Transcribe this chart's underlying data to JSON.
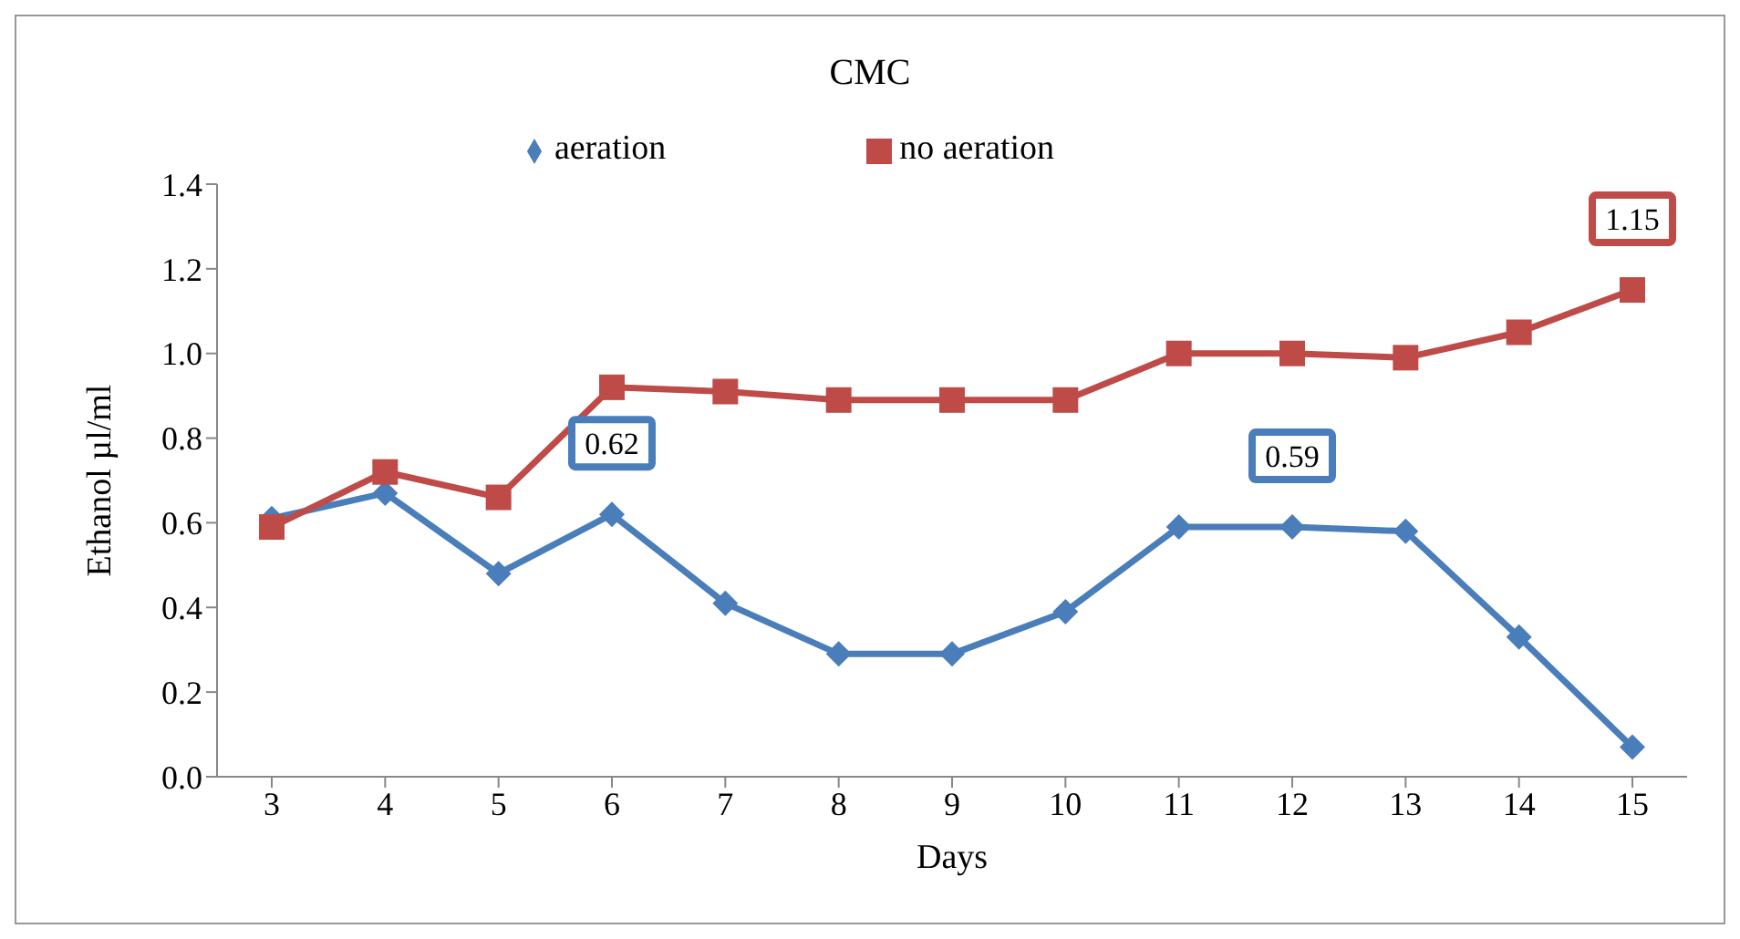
{
  "chart_data": {
    "type": "line",
    "title": "CMC",
    "xlabel": "Days",
    "ylabel": "Ethanol µl/ml",
    "categories": [
      "3",
      "4",
      "5",
      "6",
      "7",
      "8",
      "9",
      "10",
      "11",
      "12",
      "13",
      "14",
      "15"
    ],
    "series": [
      {
        "name": "aeration",
        "color": "#4a7ebb",
        "marker": "diamond",
        "values": [
          0.61,
          0.67,
          0.48,
          0.62,
          0.41,
          0.29,
          0.29,
          0.39,
          0.59,
          0.59,
          0.58,
          0.33,
          0.07
        ],
        "value_labels": [
          null,
          null,
          null,
          "0.62",
          null,
          null,
          null,
          null,
          null,
          "0.59",
          null,
          null,
          null
        ]
      },
      {
        "name": "no aeration",
        "color": "#be4b48",
        "marker": "square",
        "values": [
          0.59,
          0.72,
          0.66,
          0.92,
          0.91,
          0.89,
          0.89,
          0.89,
          1.0,
          1.0,
          0.99,
          1.05,
          1.15
        ],
        "value_labels": [
          null,
          null,
          null,
          null,
          null,
          null,
          null,
          null,
          null,
          null,
          null,
          null,
          "1.15"
        ]
      }
    ],
    "ylim": [
      0,
      1.4
    ],
    "yticks": [
      {
        "value": 0,
        "label": "0.0"
      },
      {
        "value": 0.2,
        "label": "0.2"
      },
      {
        "value": 0.4,
        "label": "0.4"
      },
      {
        "value": 0.6,
        "label": "0.6"
      },
      {
        "value": 0.8,
        "label": "0.8"
      },
      {
        "value": 1,
        "label": "1.0"
      },
      {
        "value": 1.2,
        "label": "1.2"
      },
      {
        "value": 1.4,
        "label": "1.4"
      }
    ],
    "grid": false,
    "legend": "top",
    "line_style": "solid"
  }
}
